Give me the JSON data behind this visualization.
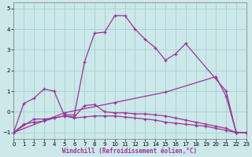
{
  "background_color": "#cce8e8",
  "grid_color": "#aad4d4",
  "line_color": "#993399",
  "xlabel": "Windchill (Refroidissement éolien,°C)",
  "xlim": [
    0,
    23
  ],
  "ylim": [
    -1.3,
    5.3
  ],
  "yticks": [
    -1,
    0,
    1,
    2,
    3,
    4,
    5
  ],
  "xticks": [
    0,
    1,
    2,
    3,
    4,
    5,
    6,
    7,
    8,
    9,
    10,
    11,
    12,
    13,
    14,
    15,
    16,
    17,
    18,
    19,
    20,
    21,
    22,
    23
  ],
  "series": [
    {
      "x": [
        0,
        1,
        2,
        3,
        4,
        5,
        6,
        7,
        8,
        9,
        10,
        11,
        12,
        13,
        14,
        15,
        16,
        17,
        21,
        22,
        23
      ],
      "y": [
        -1.0,
        0.4,
        0.65,
        1.1,
        1.0,
        -0.15,
        -0.15,
        2.4,
        3.8,
        3.85,
        4.65,
        4.65,
        4.0,
        3.5,
        3.1,
        2.5,
        2.8,
        3.3,
        1.0,
        -1.0,
        -1.0
      ]
    },
    {
      "x": [
        0,
        5,
        10,
        15,
        20,
        21,
        22,
        23
      ],
      "y": [
        -1.0,
        -0.05,
        0.45,
        0.95,
        1.7,
        0.75,
        -1.0,
        -1.0
      ]
    },
    {
      "x": [
        0,
        2,
        3,
        4,
        5,
        6,
        7,
        8,
        9,
        10,
        11,
        12,
        13,
        14,
        15,
        16,
        17,
        18,
        19,
        20,
        21,
        22,
        23
      ],
      "y": [
        -1.0,
        -0.35,
        -0.35,
        -0.3,
        -0.2,
        -0.25,
        0.3,
        0.35,
        0.0,
        -0.05,
        -0.05,
        -0.1,
        -0.1,
        -0.15,
        -0.2,
        -0.3,
        -0.4,
        -0.5,
        -0.6,
        -0.7,
        -0.8,
        -1.0,
        -1.0
      ]
    },
    {
      "x": [
        0,
        1,
        2,
        3,
        4,
        5,
        6,
        7,
        8,
        9,
        10,
        11,
        12,
        13,
        14,
        15,
        16,
        17,
        18,
        19,
        20,
        21,
        22,
        23
      ],
      "y": [
        -1.0,
        -0.6,
        -0.5,
        -0.45,
        -0.3,
        -0.2,
        -0.3,
        -0.25,
        -0.2,
        -0.2,
        -0.2,
        -0.25,
        -0.3,
        -0.35,
        -0.4,
        -0.5,
        -0.55,
        -0.6,
        -0.65,
        -0.7,
        -0.8,
        -0.9,
        -1.0,
        -1.0
      ]
    }
  ]
}
